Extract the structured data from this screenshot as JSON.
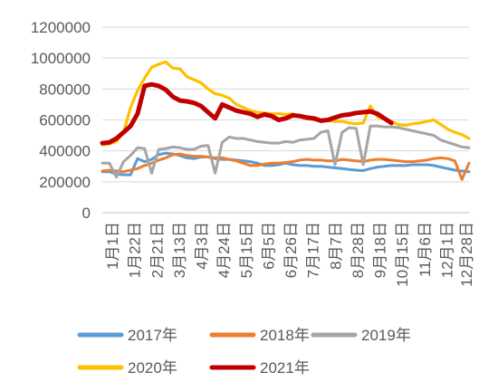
{
  "chart_data": {
    "type": "line",
    "title": "",
    "xlabel": "",
    "ylabel": "",
    "ylim": [
      0,
      1200000
    ],
    "yticks": [
      "0",
      "200000",
      "400000",
      "600000",
      "800000",
      "1000000",
      "1200000"
    ],
    "x_tick_labels": [
      "1月1日",
      "1月22日",
      "2月21日",
      "3月13日",
      "4月3日",
      "4月24日",
      "5月15日",
      "6月5日",
      "6月26日",
      "7月17日",
      "8月7日",
      "8月28日",
      "9月18日",
      "10月15日",
      "11月6日",
      "12月1日",
      "12月28日"
    ],
    "x_unit": "weeks from 1月1日",
    "grid": "horizontal",
    "legend_position": "bottom",
    "series": [
      {
        "name": "2017年",
        "color": "#5B9BD5",
        "points": [
          [
            0,
            265000
          ],
          [
            1,
            265000
          ],
          [
            2,
            250000
          ],
          [
            3,
            245000
          ],
          [
            4,
            245000
          ],
          [
            5,
            350000
          ],
          [
            6,
            330000
          ],
          [
            7,
            345000
          ],
          [
            8,
            375000
          ],
          [
            9,
            385000
          ],
          [
            10,
            380000
          ],
          [
            11,
            370000
          ],
          [
            12,
            355000
          ],
          [
            13,
            350000
          ],
          [
            14,
            360000
          ],
          [
            15,
            360000
          ],
          [
            16,
            350000
          ],
          [
            17,
            345000
          ],
          [
            18,
            345000
          ],
          [
            19,
            340000
          ],
          [
            20,
            335000
          ],
          [
            21,
            330000
          ],
          [
            22,
            320000
          ],
          [
            23,
            305000
          ],
          [
            24,
            305000
          ],
          [
            25,
            310000
          ],
          [
            26,
            320000
          ],
          [
            27,
            310000
          ],
          [
            28,
            305000
          ],
          [
            29,
            305000
          ],
          [
            30,
            300000
          ],
          [
            31,
            300000
          ],
          [
            32,
            295000
          ],
          [
            33,
            290000
          ],
          [
            34,
            285000
          ],
          [
            35,
            280000
          ],
          [
            36,
            275000
          ],
          [
            37,
            272000
          ],
          [
            38,
            285000
          ],
          [
            39,
            295000
          ],
          [
            40,
            300000
          ],
          [
            41,
            305000
          ],
          [
            42,
            305000
          ],
          [
            43,
            305000
          ],
          [
            44,
            310000
          ],
          [
            45,
            310000
          ],
          [
            46,
            310000
          ],
          [
            47,
            305000
          ],
          [
            48,
            295000
          ],
          [
            49,
            285000
          ],
          [
            50,
            275000
          ],
          [
            51,
            270000
          ],
          [
            52,
            265000
          ]
        ]
      },
      {
        "name": "2018年",
        "color": "#ED7D31",
        "points": [
          [
            0,
            270000
          ],
          [
            1,
            275000
          ],
          [
            2,
            270000
          ],
          [
            3,
            265000
          ],
          [
            4,
            275000
          ],
          [
            5,
            285000
          ],
          [
            6,
            305000
          ],
          [
            7,
            320000
          ],
          [
            8,
            340000
          ],
          [
            9,
            355000
          ],
          [
            10,
            375000
          ],
          [
            11,
            380000
          ],
          [
            12,
            370000
          ],
          [
            13,
            365000
          ],
          [
            14,
            365000
          ],
          [
            15,
            360000
          ],
          [
            16,
            355000
          ],
          [
            17,
            355000
          ],
          [
            18,
            345000
          ],
          [
            19,
            335000
          ],
          [
            20,
            320000
          ],
          [
            21,
            305000
          ],
          [
            22,
            305000
          ],
          [
            23,
            315000
          ],
          [
            24,
            320000
          ],
          [
            25,
            320000
          ],
          [
            26,
            325000
          ],
          [
            27,
            330000
          ],
          [
            28,
            340000
          ],
          [
            29,
            345000
          ],
          [
            30,
            340000
          ],
          [
            31,
            340000
          ],
          [
            32,
            335000
          ],
          [
            33,
            335000
          ],
          [
            34,
            345000
          ],
          [
            35,
            340000
          ],
          [
            36,
            335000
          ],
          [
            37,
            330000
          ],
          [
            38,
            340000
          ],
          [
            39,
            345000
          ],
          [
            40,
            345000
          ],
          [
            41,
            340000
          ],
          [
            42,
            335000
          ],
          [
            43,
            330000
          ],
          [
            44,
            330000
          ],
          [
            45,
            335000
          ],
          [
            46,
            340000
          ],
          [
            47,
            350000
          ],
          [
            48,
            355000
          ],
          [
            49,
            350000
          ],
          [
            50,
            335000
          ],
          [
            51,
            215000
          ],
          [
            52,
            320000
          ]
        ]
      },
      {
        "name": "2019年",
        "color": "#A5A5A5",
        "points": [
          [
            0,
            320000
          ],
          [
            1,
            320000
          ],
          [
            2,
            230000
          ],
          [
            3,
            330000
          ],
          [
            4,
            370000
          ],
          [
            5,
            420000
          ],
          [
            6,
            415000
          ],
          [
            7,
            255000
          ],
          [
            8,
            410000
          ],
          [
            9,
            415000
          ],
          [
            10,
            425000
          ],
          [
            11,
            420000
          ],
          [
            12,
            410000
          ],
          [
            13,
            410000
          ],
          [
            14,
            430000
          ],
          [
            15,
            435000
          ],
          [
            16,
            255000
          ],
          [
            17,
            455000
          ],
          [
            18,
            490000
          ],
          [
            19,
            480000
          ],
          [
            20,
            480000
          ],
          [
            21,
            470000
          ],
          [
            22,
            460000
          ],
          [
            23,
            455000
          ],
          [
            24,
            450000
          ],
          [
            25,
            450000
          ],
          [
            26,
            460000
          ],
          [
            27,
            455000
          ],
          [
            28,
            470000
          ],
          [
            29,
            475000
          ],
          [
            30,
            480000
          ],
          [
            31,
            520000
          ],
          [
            32,
            530000
          ],
          [
            33,
            310000
          ],
          [
            34,
            520000
          ],
          [
            35,
            550000
          ],
          [
            36,
            545000
          ],
          [
            37,
            310000
          ],
          [
            38,
            560000
          ],
          [
            39,
            560000
          ],
          [
            40,
            555000
          ],
          [
            41,
            555000
          ],
          [
            42,
            550000
          ],
          [
            43,
            540000
          ],
          [
            44,
            530000
          ],
          [
            45,
            520000
          ],
          [
            46,
            510000
          ],
          [
            47,
            500000
          ],
          [
            48,
            470000
          ],
          [
            49,
            455000
          ],
          [
            50,
            440000
          ],
          [
            51,
            425000
          ],
          [
            52,
            420000
          ]
        ]
      },
      {
        "name": "2020年",
        "color": "#FFC000",
        "points": [
          [
            0,
            440000
          ],
          [
            1,
            445000
          ],
          [
            2,
            460000
          ],
          [
            3,
            520000
          ],
          [
            4,
            680000
          ],
          [
            5,
            790000
          ],
          [
            6,
            870000
          ],
          [
            7,
            940000
          ],
          [
            8,
            960000
          ],
          [
            9,
            975000
          ],
          [
            10,
            935000
          ],
          [
            11,
            930000
          ],
          [
            12,
            880000
          ],
          [
            13,
            860000
          ],
          [
            14,
            840000
          ],
          [
            15,
            800000
          ],
          [
            16,
            770000
          ],
          [
            17,
            760000
          ],
          [
            18,
            740000
          ],
          [
            19,
            700000
          ],
          [
            20,
            680000
          ],
          [
            21,
            660000
          ],
          [
            22,
            650000
          ],
          [
            23,
            645000
          ],
          [
            24,
            640000
          ],
          [
            25,
            640000
          ],
          [
            26,
            635000
          ],
          [
            27,
            640000
          ],
          [
            28,
            620000
          ],
          [
            29,
            610000
          ],
          [
            30,
            600000
          ],
          [
            31,
            600000
          ],
          [
            32,
            595000
          ],
          [
            33,
            590000
          ],
          [
            34,
            590000
          ],
          [
            35,
            580000
          ],
          [
            36,
            575000
          ],
          [
            37,
            580000
          ],
          [
            38,
            690000
          ],
          [
            39,
            620000
          ],
          [
            40,
            605000
          ],
          [
            41,
            590000
          ],
          [
            42,
            570000
          ],
          [
            43,
            565000
          ],
          [
            44,
            575000
          ],
          [
            45,
            580000
          ],
          [
            46,
            590000
          ],
          [
            47,
            600000
          ],
          [
            48,
            570000
          ],
          [
            49,
            540000
          ],
          [
            50,
            520000
          ],
          [
            51,
            505000
          ],
          [
            52,
            480000
          ]
        ]
      },
      {
        "name": "2021年",
        "color": "#C00000",
        "points": [
          [
            0,
            450000
          ],
          [
            1,
            455000
          ],
          [
            2,
            480000
          ],
          [
            3,
            520000
          ],
          [
            4,
            560000
          ],
          [
            5,
            640000
          ],
          [
            6,
            820000
          ],
          [
            7,
            830000
          ],
          [
            8,
            820000
          ],
          [
            9,
            795000
          ],
          [
            10,
            750000
          ],
          [
            11,
            725000
          ],
          [
            12,
            720000
          ],
          [
            13,
            710000
          ],
          [
            14,
            690000
          ],
          [
            15,
            650000
          ],
          [
            16,
            610000
          ],
          [
            17,
            700000
          ],
          [
            18,
            680000
          ],
          [
            19,
            660000
          ],
          [
            20,
            650000
          ],
          [
            21,
            640000
          ],
          [
            22,
            620000
          ],
          [
            23,
            635000
          ],
          [
            24,
            625000
          ],
          [
            25,
            600000
          ],
          [
            26,
            610000
          ],
          [
            27,
            630000
          ],
          [
            28,
            625000
          ],
          [
            29,
            615000
          ],
          [
            30,
            610000
          ],
          [
            31,
            595000
          ],
          [
            32,
            600000
          ],
          [
            33,
            615000
          ],
          [
            34,
            630000
          ],
          [
            35,
            635000
          ],
          [
            36,
            645000
          ],
          [
            37,
            650000
          ],
          [
            38,
            655000
          ],
          [
            39,
            640000
          ],
          [
            40,
            610000
          ],
          [
            41,
            580000
          ]
        ]
      }
    ]
  }
}
